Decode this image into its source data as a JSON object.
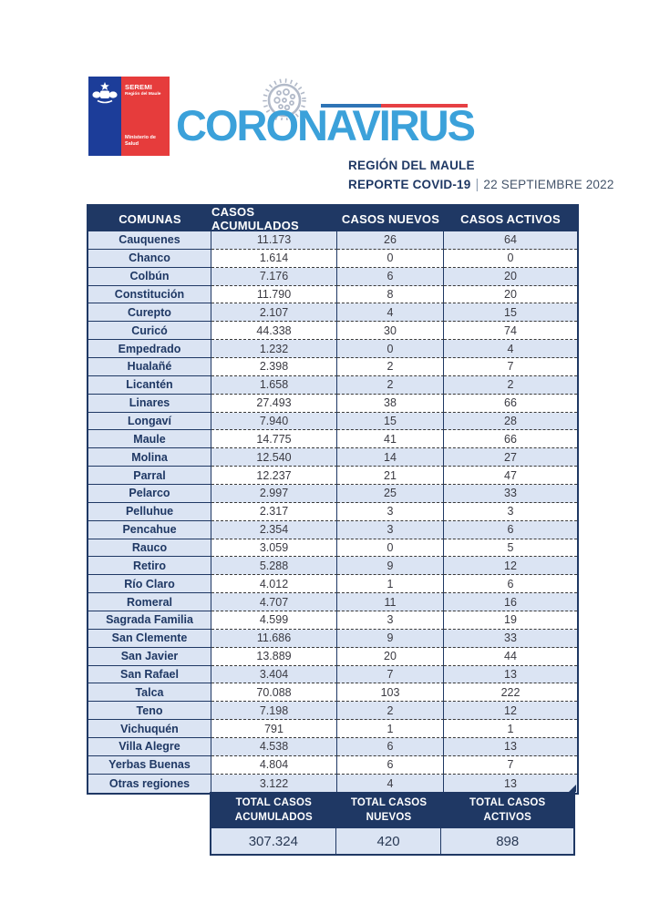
{
  "logo": {
    "seremi": "SEREMI",
    "region": "Región del Maule",
    "ministerio": "Ministerio de Salud"
  },
  "header": {
    "title": "CORONAVIRUS",
    "region_line": "REGIÓN DEL MAULE",
    "report_label": "REPORTE COVID-19",
    "separator": "|",
    "date": "22 SEPTIEMBRE 2022"
  },
  "table": {
    "columns": [
      "COMUNAS",
      "CASOS ACUMULADOS",
      "CASOS NUEVOS",
      "CASOS ACTIVOS"
    ],
    "rows": [
      [
        "Cauquenes",
        "11.173",
        "26",
        "64"
      ],
      [
        "Chanco",
        "1.614",
        "0",
        "0"
      ],
      [
        "Colbún",
        "7.176",
        "6",
        "20"
      ],
      [
        "Constitución",
        "11.790",
        "8",
        "20"
      ],
      [
        "Curepto",
        "2.107",
        "4",
        "15"
      ],
      [
        "Curicó",
        "44.338",
        "30",
        "74"
      ],
      [
        "Empedrado",
        "1.232",
        "0",
        "4"
      ],
      [
        "Hualañé",
        "2.398",
        "2",
        "7"
      ],
      [
        "Licantén",
        "1.658",
        "2",
        "2"
      ],
      [
        "Linares",
        "27.493",
        "38",
        "66"
      ],
      [
        "Longaví",
        "7.940",
        "15",
        "28"
      ],
      [
        "Maule",
        "14.775",
        "41",
        "66"
      ],
      [
        "Molina",
        "12.540",
        "14",
        "27"
      ],
      [
        "Parral",
        "12.237",
        "21",
        "47"
      ],
      [
        "Pelarco",
        "2.997",
        "25",
        "33"
      ],
      [
        "Pelluhue",
        "2.317",
        "3",
        "3"
      ],
      [
        "Pencahue",
        "2.354",
        "3",
        "6"
      ],
      [
        "Rauco",
        "3.059",
        "0",
        "5"
      ],
      [
        "Retiro",
        "5.288",
        "9",
        "12"
      ],
      [
        "Río Claro",
        "4.012",
        "1",
        "6"
      ],
      [
        "Romeral",
        "4.707",
        "11",
        "16"
      ],
      [
        "Sagrada Familia",
        "4.599",
        "3",
        "19"
      ],
      [
        "San Clemente",
        "11.686",
        "9",
        "33"
      ],
      [
        "San Javier",
        "13.889",
        "20",
        "44"
      ],
      [
        "San Rafael",
        "3.404",
        "7",
        "13"
      ],
      [
        "Talca",
        "70.088",
        "103",
        "222"
      ],
      [
        "Teno",
        "7.198",
        "2",
        "12"
      ],
      [
        "Vichuquén",
        "791",
        "1",
        "1"
      ],
      [
        "Villa Alegre",
        "4.538",
        "6",
        "13"
      ],
      [
        "Yerbas Buenas",
        "4.804",
        "6",
        "7"
      ],
      [
        "Otras regiones",
        "3.122",
        "4",
        "13"
      ]
    ],
    "totals": {
      "labels": [
        [
          "TOTAL CASOS",
          "ACUMULADOS"
        ],
        [
          "TOTAL CASOS",
          "NUEVOS"
        ],
        [
          "TOTAL CASOS",
          "ACTIVOS"
        ]
      ],
      "values": [
        "307.324",
        "420",
        "898"
      ]
    }
  },
  "colors": {
    "navy": "#1F3864",
    "row_shade": "#DBE4F3",
    "title_blue": "#3BA1DA",
    "flag_blue": "#2E74B5",
    "flag_red": "#E64043",
    "logo_blue": "#1C3D99",
    "logo_red": "#E63C3C",
    "virus_gray": "#B2BAC9"
  }
}
